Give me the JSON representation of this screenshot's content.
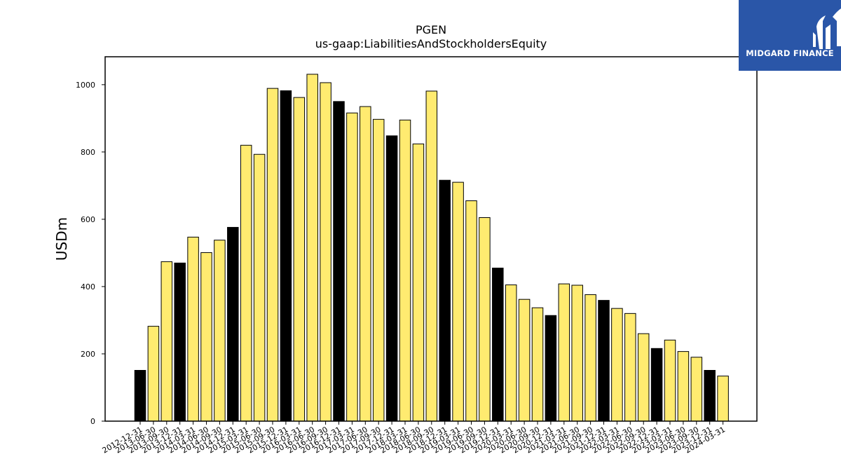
{
  "chart_data": {
    "type": "bar",
    "title": "PGEN",
    "subtitle": "us-gaap:LiabilitiesAndStockholdersEquity",
    "xlabel": "",
    "ylabel": "USDm",
    "ylim": [
      0,
      1083
    ],
    "yticks": [
      0,
      200,
      400,
      600,
      800,
      1000
    ],
    "grid": false,
    "categories": [
      "2012-12-31",
      "2013-06-30",
      "2013-09-30",
      "2013-12-31",
      "2014-03-31",
      "2014-06-30",
      "2014-09-30",
      "2014-12-31",
      "2015-03-31",
      "2015-06-30",
      "2015-09-30",
      "2015-12-31",
      "2016-03-31",
      "2016-06-30",
      "2016-09-30",
      "2016-12-31",
      "2017-03-31",
      "2017-06-30",
      "2017-09-30",
      "2017-12-31",
      "2018-03-31",
      "2018-06-30",
      "2018-09-30",
      "2018-12-31",
      "2019-03-31",
      "2019-06-30",
      "2019-09-30",
      "2019-12-31",
      "2020-03-31",
      "2020-06-30",
      "2020-09-30",
      "2020-12-31",
      "2021-03-31",
      "2021-06-30",
      "2021-09-30",
      "2021-12-31",
      "2022-03-31",
      "2022-06-30",
      "2022-09-30",
      "2022-12-31",
      "2023-03-31",
      "2023-06-30",
      "2023-09-30",
      "2023-12-31",
      "2024-03-31"
    ],
    "values": [
      151,
      282,
      474,
      470,
      547,
      501,
      538,
      576,
      820,
      793,
      989,
      982,
      962,
      1031,
      1006,
      950,
      916,
      935,
      897,
      848,
      895,
      824,
      981,
      716,
      710,
      655,
      605,
      455,
      405,
      362,
      337,
      314,
      408,
      404,
      376,
      359,
      335,
      320,
      260,
      216,
      241,
      207,
      190,
      151,
      134
    ],
    "bar_colors": [
      "#000000",
      "#ffeb70",
      "#ffeb70",
      "#000000",
      "#ffeb70",
      "#ffeb70",
      "#ffeb70",
      "#000000",
      "#ffeb70",
      "#ffeb70",
      "#ffeb70",
      "#000000",
      "#ffeb70",
      "#ffeb70",
      "#ffeb70",
      "#000000",
      "#ffeb70",
      "#ffeb70",
      "#ffeb70",
      "#000000",
      "#ffeb70",
      "#ffeb70",
      "#ffeb70",
      "#000000",
      "#ffeb70",
      "#ffeb70",
      "#ffeb70",
      "#000000",
      "#ffeb70",
      "#ffeb70",
      "#ffeb70",
      "#000000",
      "#ffeb70",
      "#ffeb70",
      "#ffeb70",
      "#000000",
      "#ffeb70",
      "#ffeb70",
      "#ffeb70",
      "#000000",
      "#ffeb70",
      "#ffeb70",
      "#ffeb70",
      "#000000",
      "#ffeb70"
    ]
  },
  "logo": {
    "text": "MIDGARD FINANCE",
    "bg_color": "#2a56a8"
  }
}
